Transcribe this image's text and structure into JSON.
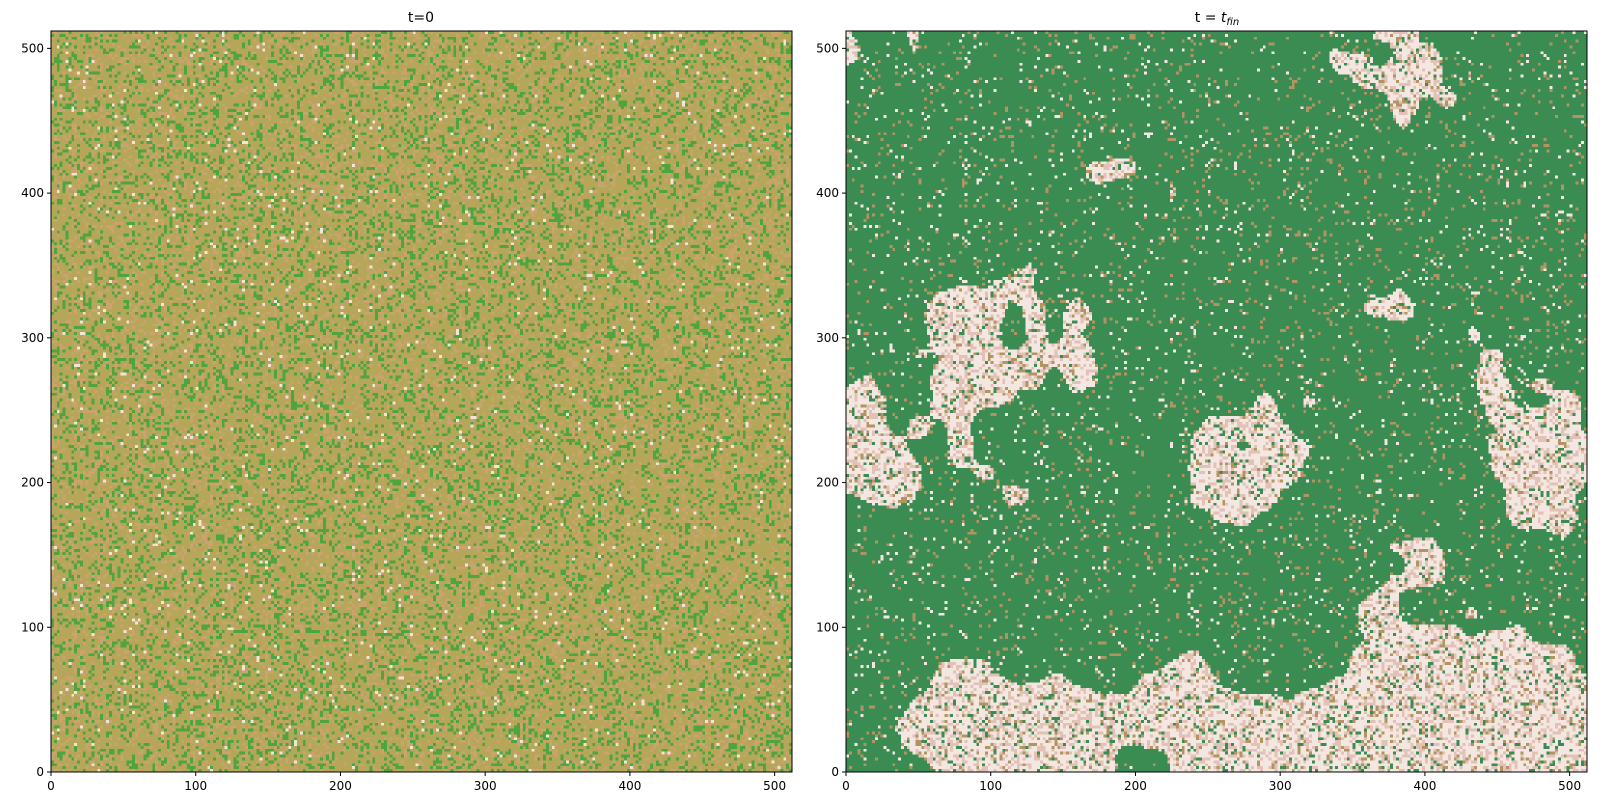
{
  "chart_data": [
    {
      "type": "heatmap",
      "title": "t=0",
      "title_sub": "",
      "xlabel": "",
      "ylabel": "",
      "xlim": [
        0,
        512
      ],
      "ylim": [
        0,
        512
      ],
      "xticks": [
        0,
        100,
        200,
        300,
        400,
        500
      ],
      "yticks": [
        0,
        100,
        200,
        300,
        400,
        500
      ],
      "grid": false,
      "description": "",
      "colors": {
        "base": "#b5a65a",
        "green": "#4ea43f",
        "tan": "#c9a46c",
        "light": "#f1e4d8"
      },
      "pattern": {
        "kind": "noise",
        "base_fraction": 0.62,
        "green_fraction": 0.2,
        "tan_fraction": 0.16,
        "light_fraction": 0.02
      }
    },
    {
      "type": "heatmap",
      "title": "t = ",
      "title_italic": "t",
      "title_sub": "fin",
      "xlabel": "",
      "ylabel": "",
      "xlim": [
        0,
        512
      ],
      "ylim": [
        0,
        512
      ],
      "xticks": [
        0,
        100,
        200,
        300,
        400,
        500
      ],
      "yticks": [
        0,
        100,
        200,
        300,
        400,
        500
      ],
      "grid": false,
      "colors": {
        "green": "#3a8c52",
        "light": "#f4e6e0",
        "pink": "#e2c2b6",
        "tan": "#b09562"
      },
      "pattern": {
        "kind": "clusters",
        "green_fraction": 0.55,
        "light_fraction": 0.45
      }
    }
  ]
}
